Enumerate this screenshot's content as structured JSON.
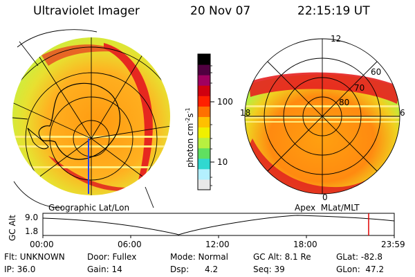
{
  "header": {
    "instrument": "Ultraviolet Imager",
    "date": "20 Nov 07",
    "time": "22:15:19 UT"
  },
  "colorbar": {
    "unit_label": "photon cm",
    "unit_sup1": "-2",
    "unit_mid": "s",
    "unit_sup2": "-1",
    "ticks": [
      "100",
      "10"
    ],
    "colors": [
      "#e8e8e8",
      "#b4f0ff",
      "#30d8d0",
      "#60e060",
      "#b8f040",
      "#f0f000",
      "#ffc000",
      "#ff7000",
      "#ff2000",
      "#d00010",
      "#a00060",
      "#500040",
      "#000000"
    ]
  },
  "left_panel": {
    "caption": "Geographic Lat/Lon"
  },
  "right_panel": {
    "caption": "Apex  MLat/MLT",
    "mlt_labels": {
      "top": "12",
      "left": "18",
      "right": "6",
      "bottom": "0"
    },
    "lat_labels": [
      "60",
      "70",
      "80"
    ]
  },
  "altitude_plot": {
    "ylabel": "GC Alt",
    "yticks": [
      "9.0",
      "1.8"
    ],
    "xticks": [
      "00:00",
      "06:00",
      "12:00",
      "18:00",
      "23:59"
    ],
    "marker_hour": 22.25
  },
  "info": {
    "flt": "Flt: UNKNOWN",
    "door": "Door: Fullex",
    "mode": "Mode: Normal",
    "gcalt": "GC Alt: 8.1 Re",
    "glat": "GLat: -82.8",
    "ip": "IP: 36.0",
    "gain": "Gain: 14",
    "dsp": "Dsp:      4.2",
    "seq": "Seq: 39",
    "glon": "GLon:  47.2"
  },
  "colors": {
    "oval": "#e52020",
    "diffuse": "#ff9010",
    "background": "#dde840",
    "rim": "#a8ee40",
    "marker": "#e00000"
  }
}
